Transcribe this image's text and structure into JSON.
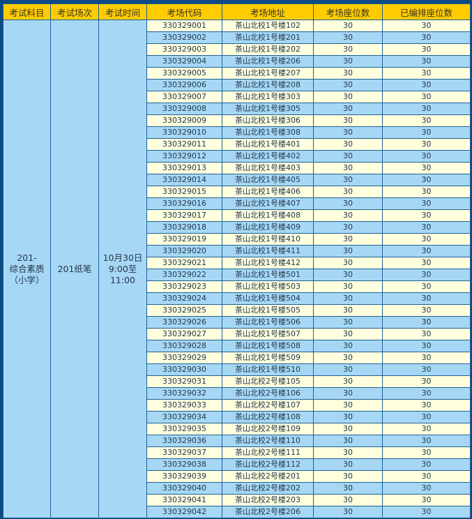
{
  "headers": [
    "考试科目",
    "考试场次",
    "考试时间",
    "考场代码",
    "考场地址",
    "考场座位数",
    "已编排座位数"
  ],
  "subject": {
    "line1": "201-",
    "line2": "综合素质",
    "line3": "（小学）"
  },
  "session": "201纸笔",
  "time": {
    "line1": "10月30日",
    "line2": "9:00至",
    "line3": "11:00"
  },
  "rows": [
    [
      "330329001",
      "茶山北校1号楼102",
      "30",
      "30"
    ],
    [
      "330329002",
      "茶山北校1号楼201",
      "30",
      "30"
    ],
    [
      "330329003",
      "茶山北校1号楼202",
      "30",
      "30"
    ],
    [
      "330329004",
      "茶山北校1号楼206",
      "30",
      "30"
    ],
    [
      "330329005",
      "茶山北校1号楼207",
      "30",
      "30"
    ],
    [
      "330329006",
      "茶山北校1号楼208",
      "30",
      "30"
    ],
    [
      "330329007",
      "茶山北校1号楼303",
      "30",
      "30"
    ],
    [
      "330329008",
      "茶山北校1号楼305",
      "30",
      "30"
    ],
    [
      "330329009",
      "茶山北校1号楼306",
      "30",
      "30"
    ],
    [
      "330329010",
      "茶山北校1号楼308",
      "30",
      "30"
    ],
    [
      "330329011",
      "茶山北校1号楼401",
      "30",
      "30"
    ],
    [
      "330329012",
      "茶山北校1号楼402",
      "30",
      "30"
    ],
    [
      "330329013",
      "茶山北校1号楼403",
      "30",
      "30"
    ],
    [
      "330329014",
      "茶山北校1号楼405",
      "30",
      "30"
    ],
    [
      "330329015",
      "茶山北校1号楼406",
      "30",
      "30"
    ],
    [
      "330329016",
      "茶山北校1号楼407",
      "30",
      "30"
    ],
    [
      "330329017",
      "茶山北校1号楼408",
      "30",
      "30"
    ],
    [
      "330329018",
      "茶山北校1号楼409",
      "30",
      "30"
    ],
    [
      "330329019",
      "茶山北校1号楼410",
      "30",
      "30"
    ],
    [
      "330329020",
      "茶山北校1号楼411",
      "30",
      "30"
    ],
    [
      "330329021",
      "茶山北校1号楼412",
      "30",
      "30"
    ],
    [
      "330329022",
      "茶山北校1号楼501",
      "30",
      "30"
    ],
    [
      "330329023",
      "茶山北校1号楼503",
      "30",
      "30"
    ],
    [
      "330329024",
      "茶山北校1号楼504",
      "30",
      "30"
    ],
    [
      "330329025",
      "茶山北校1号楼505",
      "30",
      "30"
    ],
    [
      "330329026",
      "茶山北校1号楼506",
      "30",
      "30"
    ],
    [
      "330329027",
      "茶山北校1号楼507",
      "30",
      "30"
    ],
    [
      "330329028",
      "茶山北校1号楼508",
      "30",
      "30"
    ],
    [
      "330329029",
      "茶山北校1号楼509",
      "30",
      "30"
    ],
    [
      "330329030",
      "茶山北校1号楼510",
      "30",
      "30"
    ],
    [
      "330329031",
      "茶山北校2号楼105",
      "30",
      "30"
    ],
    [
      "330329032",
      "茶山北校2号楼106",
      "30",
      "30"
    ],
    [
      "330329033",
      "茶山北校2号楼107",
      "30",
      "30"
    ],
    [
      "330329034",
      "茶山北校2号楼108",
      "30",
      "30"
    ],
    [
      "330329035",
      "茶山北校2号楼109",
      "30",
      "30"
    ],
    [
      "330329036",
      "茶山北校2号楼110",
      "30",
      "30"
    ],
    [
      "330329037",
      "茶山北校2号楼111",
      "30",
      "30"
    ],
    [
      "330329038",
      "茶山北校2号楼112",
      "30",
      "30"
    ],
    [
      "330329039",
      "茶山北校2号楼201",
      "30",
      "30"
    ],
    [
      "330329040",
      "茶山北校2号楼202",
      "30",
      "30"
    ],
    [
      "330329041",
      "茶山北校2号楼203",
      "30",
      "30"
    ],
    [
      "330329042",
      "茶山北校2号楼206",
      "30",
      "30"
    ]
  ]
}
